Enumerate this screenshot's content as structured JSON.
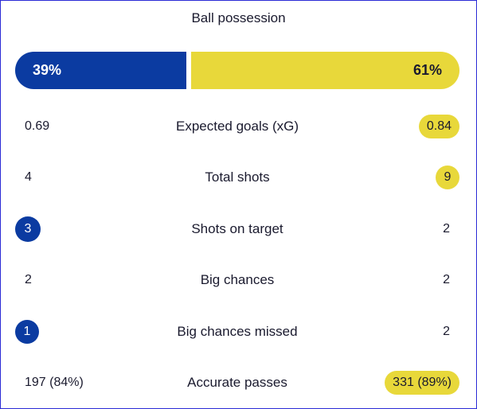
{
  "title": "Ball possession",
  "possession": {
    "home": "39%",
    "away": "61%",
    "home_fraction": 0.39
  },
  "colors": {
    "home": "#0b3ba1",
    "away": "#e8d83a"
  },
  "stats": [
    {
      "label": "Expected goals (xG)",
      "home": "0.69",
      "away": "0.84",
      "highlight": "away"
    },
    {
      "label": "Total shots",
      "home": "4",
      "away": "9",
      "highlight": "away"
    },
    {
      "label": "Shots on target",
      "home": "3",
      "away": "2",
      "highlight": "home"
    },
    {
      "label": "Big chances",
      "home": "2",
      "away": "2",
      "highlight": "none"
    },
    {
      "label": "Big chances missed",
      "home": "1",
      "away": "2",
      "highlight": "home"
    },
    {
      "label": "Accurate passes",
      "home": "197 (84%)",
      "away": "331 (89%)",
      "highlight": "away"
    }
  ]
}
